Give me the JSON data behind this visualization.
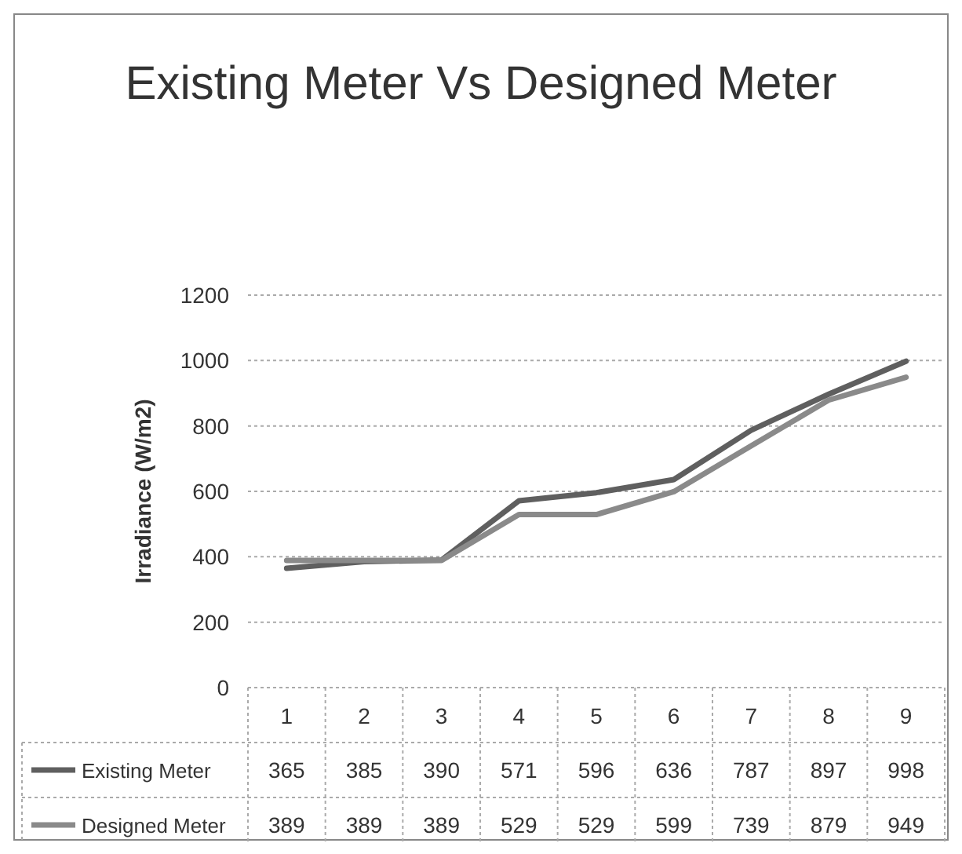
{
  "chart_data": {
    "type": "line",
    "title": "Existing Meter Vs Designed Meter",
    "ylabel": "Irradiance (W/m2)",
    "categories": [
      "1",
      "2",
      "3",
      "4",
      "5",
      "6",
      "7",
      "8",
      "9"
    ],
    "series": [
      {
        "name": "Existing Meter",
        "color": "#5f5f5f",
        "values": [
          365,
          385,
          390,
          571,
          596,
          636,
          787,
          897,
          998
        ]
      },
      {
        "name": "Designed Meter",
        "color": "#8a8a8a",
        "values": [
          389,
          389,
          389,
          529,
          529,
          599,
          739,
          879,
          949
        ]
      }
    ],
    "ylim": [
      0,
      1200
    ],
    "yticks": [
      0,
      200,
      400,
      600,
      800,
      1000,
      1200
    ],
    "grid": "y",
    "data_labels": true,
    "legend": "bottom",
    "marker": "none",
    "line_style": "solid"
  }
}
